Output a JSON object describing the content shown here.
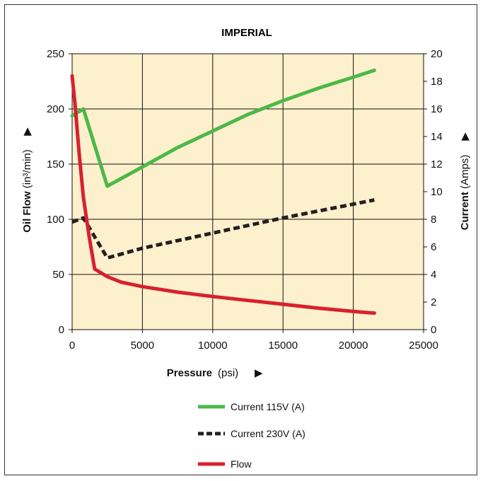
{
  "chart_data": {
    "type": "line",
    "title": "IMPERIAL",
    "xlabel": {
      "main": "Pressure",
      "unit": "(psi)",
      "marker": "▶"
    },
    "ylabel_left": {
      "main": "Oil Flow",
      "unit": "(in³/min)",
      "marker": "▶"
    },
    "ylabel_right": {
      "main": "Current",
      "unit": "(Amps)",
      "marker": "▶"
    },
    "xlim": [
      0,
      25000
    ],
    "ylim_left": [
      0,
      250
    ],
    "ylim_right": [
      0,
      20
    ],
    "x_ticks": [
      "0",
      "5000",
      "10000",
      "15000",
      "20000",
      "25000"
    ],
    "y_left_ticks": [
      "0",
      "50",
      "100",
      "150",
      "200",
      "250"
    ],
    "y_right_ticks": [
      "0",
      "2",
      "4",
      "6",
      "8",
      "10",
      "12",
      "14",
      "16",
      "18",
      "20"
    ],
    "grid": true,
    "plot_background": "#fdf0cc",
    "series": [
      {
        "name": "Current 115V (A)",
        "axis": "right",
        "color": "#4cb848",
        "dash": "solid",
        "x": [
          0,
          800,
          2500,
          5000,
          7500,
          10000,
          12500,
          15000,
          17500,
          20000,
          21500
        ],
        "y": [
          15.5,
          16,
          10.4,
          11.8,
          13.2,
          14.4,
          15.6,
          16.6,
          17.5,
          18.3,
          18.8
        ]
      },
      {
        "name": "Current 230V (A)",
        "axis": "right",
        "color": "#231f20",
        "dash": "dashed",
        "x": [
          0,
          800,
          2500,
          5000,
          10000,
          15000,
          20000,
          21500
        ],
        "y": [
          7.8,
          8.1,
          5.2,
          5.9,
          7.0,
          8.1,
          9.1,
          9.4
        ]
      },
      {
        "name": "Flow",
        "axis": "left",
        "color": "#d7212e",
        "dash": "solid",
        "x": [
          0,
          200,
          500,
          800,
          1200,
          1600,
          2500,
          3500,
          5000,
          7500,
          10000,
          12500,
          15000,
          17500,
          20000,
          21500
        ],
        "y": [
          230,
          205,
          160,
          120,
          85,
          55,
          48,
          43,
          39,
          34,
          30,
          26.5,
          23,
          19.5,
          16.5,
          15
        ]
      }
    ],
    "legend": {
      "placement": "bottom-center",
      "items": [
        "Current 115V (A)",
        "Current 230V (A)",
        "Flow"
      ]
    }
  }
}
